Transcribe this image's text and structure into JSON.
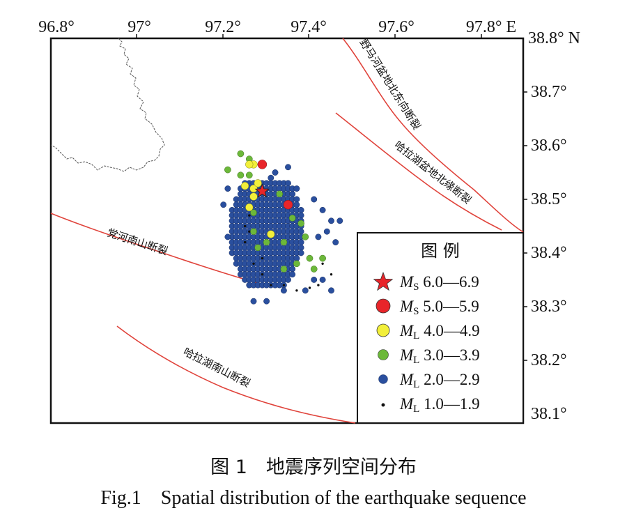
{
  "map": {
    "lon_ticks": [
      "96.8°",
      "97°",
      "97.2°",
      "97.4°",
      "97.6°",
      "97.8° E"
    ],
    "lat_ticks": [
      "38.8° N",
      "38.7°",
      "38.6°",
      "38.5°",
      "38.4°",
      "38.3°",
      "38.2°",
      "38.1°"
    ],
    "fault_labels": {
      "yemahe": "野马河盆地北东向断裂",
      "halahu_north": "哈拉湖盆地北缘断裂",
      "danghe": "党河南山断裂",
      "halahu_south": "哈拉湖南山断裂"
    },
    "legend": {
      "title": "图 例",
      "items": [
        {
          "type": "Ms",
          "mag": "M",
          "sub": "S",
          "range": " 6.0—6.9",
          "symbol": "star",
          "color": "#e8252a"
        },
        {
          "type": "Ms",
          "mag": "M",
          "sub": "S",
          "range": " 5.0—5.9",
          "symbol": "circle",
          "color": "#e8252a"
        },
        {
          "type": "ML",
          "mag": "M",
          "sub": "L",
          "range": " 4.0—4.9",
          "symbol": "circle",
          "color": "#f2ef3a"
        },
        {
          "type": "ML",
          "mag": "M",
          "sub": "L",
          "range": " 3.0—3.9",
          "symbol": "circle",
          "color": "#6cb83a"
        },
        {
          "type": "ML",
          "mag": "M",
          "sub": "L",
          "range": " 2.0—2.9",
          "symbol": "circle",
          "color": "#2a4f9e"
        },
        {
          "type": "ML",
          "mag": "M",
          "sub": "L",
          "range": " 1.0—1.9",
          "symbol": "dot",
          "color": "#111111"
        }
      ]
    },
    "colors": {
      "fault": "#e0443c",
      "boundary": "#444444",
      "blue": "#2a4f9e",
      "green": "#6cb83a",
      "yellow": "#f2ef3a",
      "red": "#e8252a",
      "black": "#111111"
    },
    "events": {
      "large": [
        {
          "lon": 97.28,
          "lat": 38.515,
          "class": "Ms6"
        },
        {
          "lon": 97.28,
          "lat": 38.565,
          "class": "Ms5"
        },
        {
          "lon": 97.34,
          "lat": 38.49,
          "class": "Ms5"
        }
      ],
      "ML4": [
        [
          97.24,
          38.525
        ],
        [
          97.26,
          38.52
        ],
        [
          97.26,
          38.505
        ],
        [
          97.25,
          38.485
        ],
        [
          97.26,
          38.565
        ],
        [
          97.25,
          38.565
        ],
        [
          97.3,
          38.435
        ],
        [
          97.27,
          38.53
        ]
      ],
      "ML3": [
        [
          97.2,
          38.555
        ],
        [
          97.23,
          38.585
        ],
        [
          97.25,
          38.575
        ],
        [
          97.25,
          38.545
        ],
        [
          97.23,
          38.545
        ],
        [
          97.26,
          38.475
        ],
        [
          97.32,
          38.51
        ],
        [
          97.35,
          38.465
        ],
        [
          97.37,
          38.455
        ],
        [
          97.38,
          38.43
        ],
        [
          97.33,
          38.42
        ],
        [
          97.29,
          38.42
        ],
        [
          97.26,
          38.44
        ],
        [
          97.36,
          38.38
        ],
        [
          97.33,
          38.37
        ],
        [
          97.4,
          38.37
        ],
        [
          97.39,
          38.39
        ],
        [
          97.42,
          38.39
        ],
        [
          97.27,
          38.41
        ]
      ]
    }
  },
  "caption": {
    "cn": "图 1　地震序列空间分布",
    "en": "Fig.1　Spatial distribution of the earthquake sequence"
  }
}
